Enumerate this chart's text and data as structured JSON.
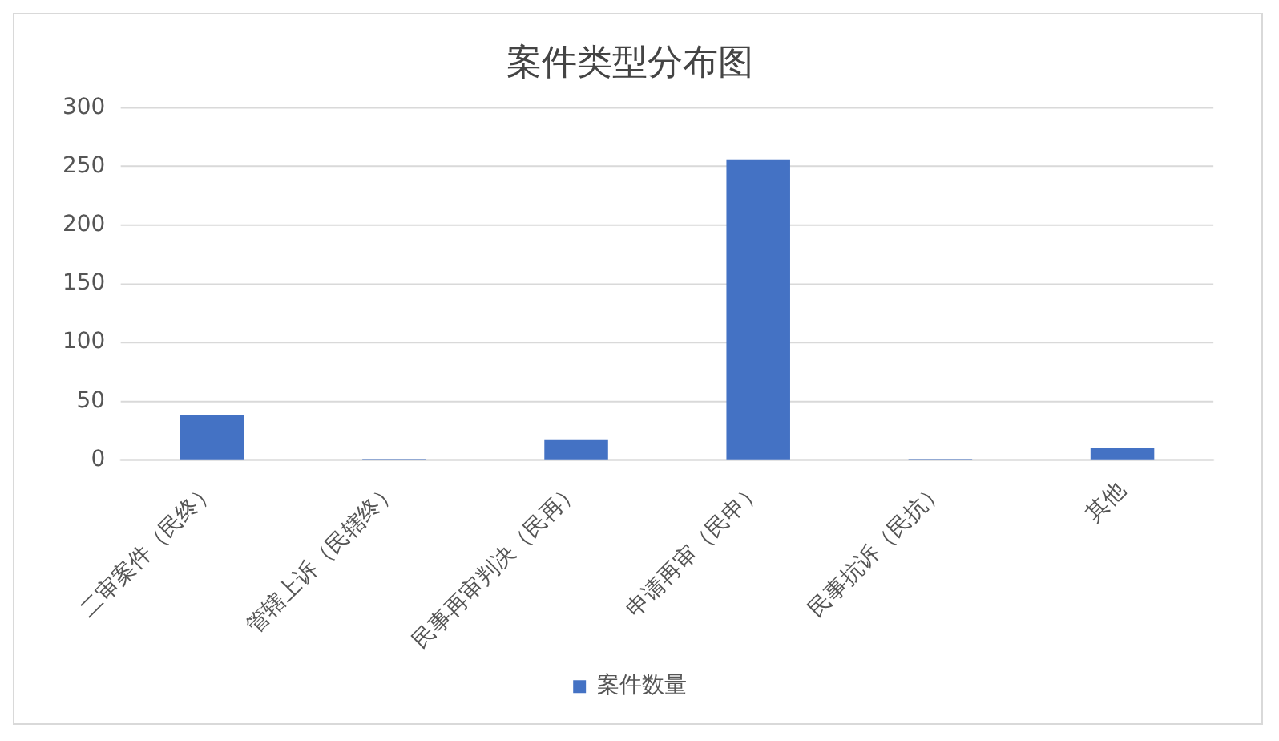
{
  "chart_data": {
    "type": "bar",
    "title": "案件类型分布图",
    "categories": [
      "二审案件（民终）",
      "管辖上诉（民辖终）",
      "民事再审判决（民再）",
      "申请再审（民申）",
      "民事抗诉（民抗）",
      "其他"
    ],
    "series": [
      {
        "name": "案件数量",
        "color": "#4472c4",
        "values": [
          38,
          1,
          17,
          256,
          1,
          10
        ]
      }
    ],
    "ylim": [
      0,
      300
    ],
    "yticks": [
      0,
      50,
      100,
      150,
      200,
      250,
      300
    ],
    "grid": "y",
    "legend": "bottom"
  }
}
